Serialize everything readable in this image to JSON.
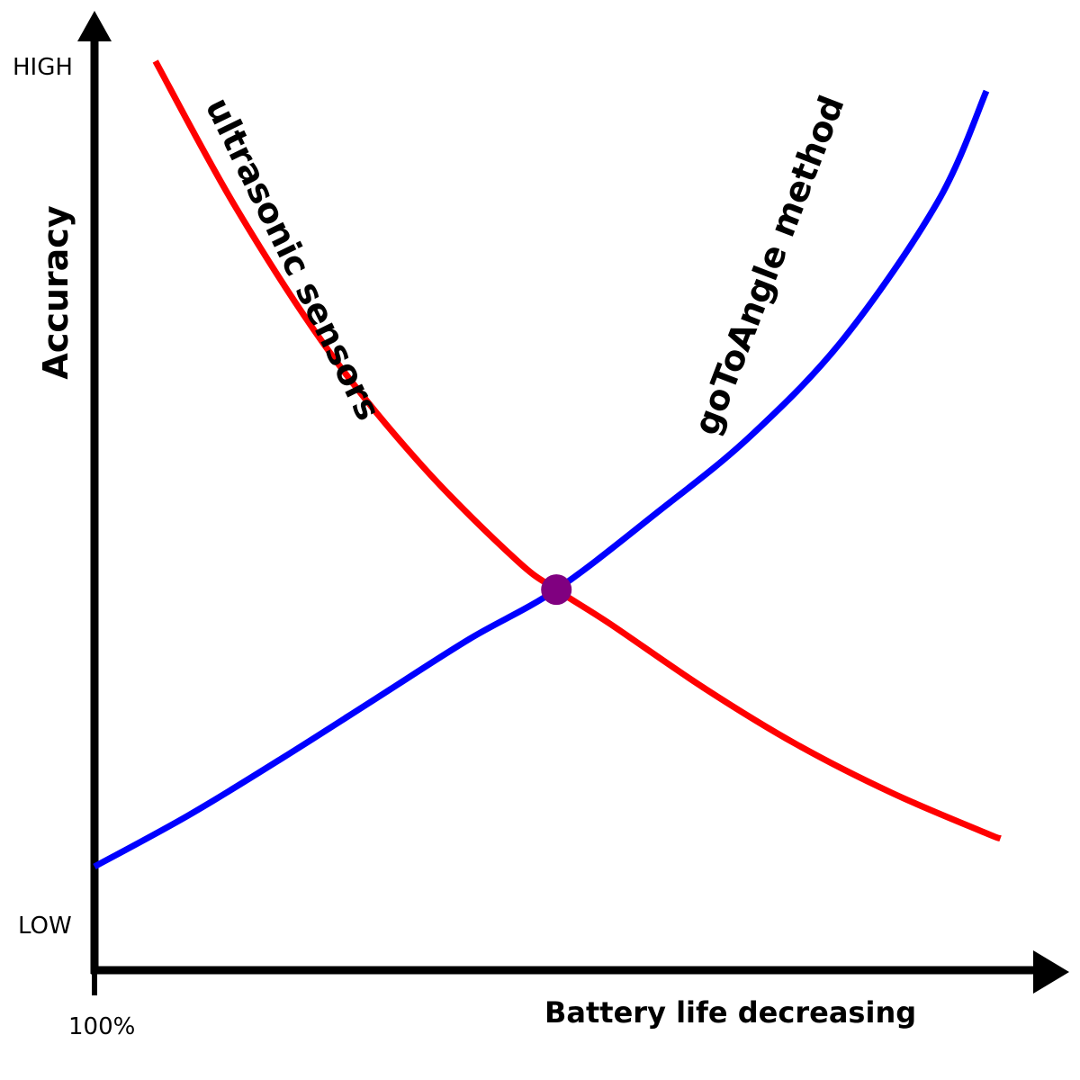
{
  "chart_data": {
    "type": "line",
    "xlabel": "Battery life decreasing",
    "ylabel": "Accuracy",
    "x_tick_labels": [
      "100%"
    ],
    "y_tick_labels": {
      "high": "HIGH",
      "low": "LOW"
    },
    "xlim": [
      0,
      100
    ],
    "ylim": [
      0,
      100
    ],
    "grid": false,
    "legend": "none",
    "series": [
      {
        "name": "ultrasonic sensors",
        "color": "#ff0000",
        "x": [
          6.5,
          15,
          25,
          35,
          45,
          49.3,
          55,
          65,
          75,
          85,
          95,
          96.7
        ],
        "y": [
          100,
          83,
          66,
          52.5,
          41.5,
          38,
          34,
          26.5,
          19.8,
          14.2,
          9.5,
          8.8
        ]
      },
      {
        "name": "goToAngle method",
        "color": "#0000ff",
        "x": [
          0,
          10,
          20,
          30,
          40,
          49.3,
          60,
          70,
          80,
          90,
          95.2
        ],
        "y": [
          5.5,
          11.5,
          18.2,
          25.2,
          32.2,
          38,
          47,
          56,
          67.5,
          83.5,
          96.5
        ]
      }
    ],
    "annotations": [
      {
        "type": "point",
        "label": "intersection",
        "x": 49.3,
        "y": 38,
        "color": "#800080"
      }
    ]
  }
}
